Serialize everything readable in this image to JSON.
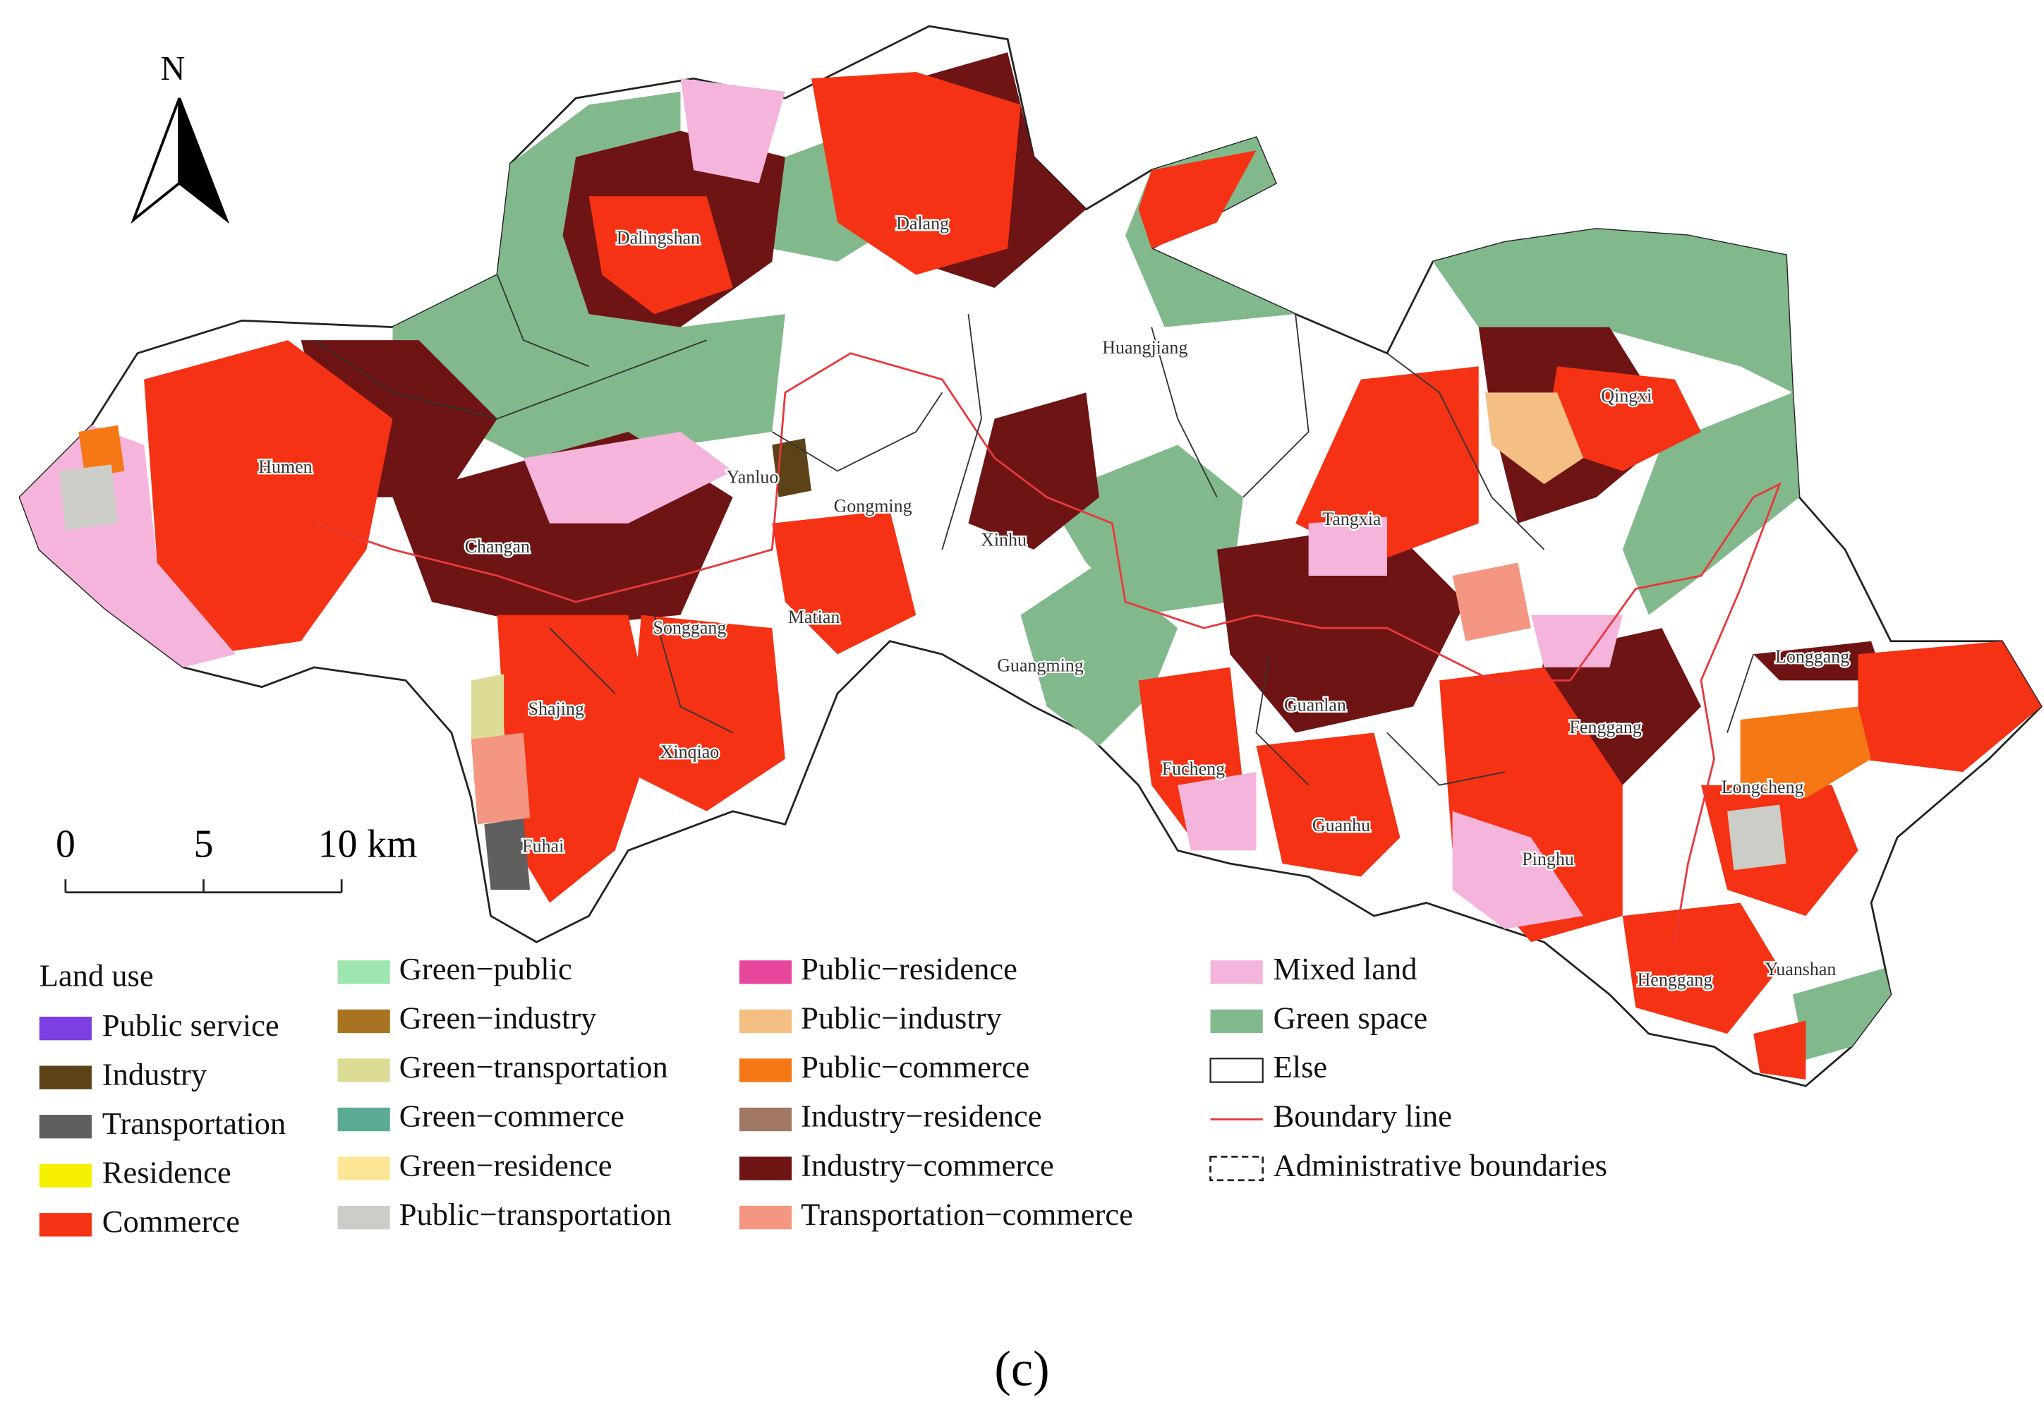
{
  "map": {
    "north": "N",
    "scale_bar": {
      "ticks": [
        {
          "value": 0,
          "label": "0"
        },
        {
          "value": 5,
          "label": "5"
        },
        {
          "value": 10,
          "label": "10 km"
        }
      ]
    },
    "places": [
      "Dalingshan",
      "Dalang",
      "Huangjiang",
      "Qingxi",
      "Humen",
      "Yanluo",
      "Gongming",
      "Changan",
      "Tangxia",
      "Xinhu",
      "Matian",
      "Songgang",
      "Longgang",
      "Guangming",
      "Shajing",
      "Guanlan",
      "Fenggang",
      "Xinqiao",
      "Fucheng",
      "Longcheng",
      "Guanhu",
      "Pinghu",
      "Fuhai",
      "Henggang",
      "Yuanshan"
    ],
    "legend": {
      "title": "Land use",
      "items": [
        {
          "label": "Public service",
          "color": "#7b3fe4",
          "symbol": "fill"
        },
        {
          "label": "Industry",
          "color": "#5c4317",
          "symbol": "fill"
        },
        {
          "label": "Transportation",
          "color": "#5f5f5f",
          "symbol": "fill"
        },
        {
          "label": "Residence",
          "color": "#f5f000",
          "symbol": "fill"
        },
        {
          "label": "Commerce",
          "color": "#f53214",
          "symbol": "fill"
        },
        {
          "label": "Green−public",
          "color": "#9ee6b0",
          "symbol": "fill"
        },
        {
          "label": "Green−industry",
          "color": "#a87422",
          "symbol": "fill"
        },
        {
          "label": "Green−transportation",
          "color": "#dcdc96",
          "symbol": "fill"
        },
        {
          "label": "Green−commerce",
          "color": "#5aaa96",
          "symbol": "fill"
        },
        {
          "label": "Green−residence",
          "color": "#fae696",
          "symbol": "fill"
        },
        {
          "label": "Public−transportation",
          "color": "#cdcdc8",
          "symbol": "fill"
        },
        {
          "label": "Public−residence",
          "color": "#e6469b",
          "symbol": "fill"
        },
        {
          "label": "Public−industry",
          "color": "#f5be82",
          "symbol": "fill"
        },
        {
          "label": "Public−commerce",
          "color": "#f57814",
          "symbol": "fill"
        },
        {
          "label": "Industry−residence",
          "color": "#a07864",
          "symbol": "fill"
        },
        {
          "label": "Industry−commerce",
          "color": "#6e1414",
          "symbol": "fill"
        },
        {
          "label": "Transportation−commerce",
          "color": "#f59682",
          "symbol": "fill"
        },
        {
          "label": "Mixed land",
          "color": "#f5b4dc",
          "symbol": "fill"
        },
        {
          "label": "Green space",
          "color": "#82b98c",
          "symbol": "fill"
        },
        {
          "label": "Else",
          "color": "#ffffff",
          "symbol": "fill"
        },
        {
          "label": "Boundary line",
          "color": "#e8383d",
          "symbol": "line"
        },
        {
          "label": "Administrative boundaries",
          "color": "#222222",
          "symbol": "dashed"
        }
      ]
    },
    "caption": "(c)"
  }
}
